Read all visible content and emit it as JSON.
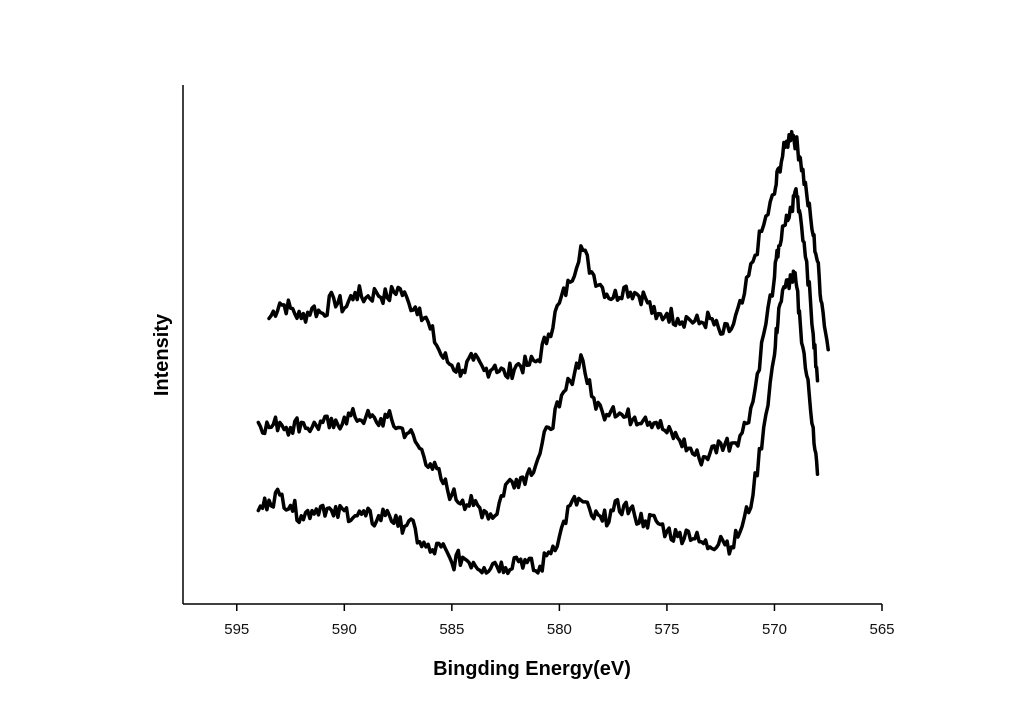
{
  "chart_data": {
    "type": "line",
    "title": "",
    "xlabel": "Bingding Energy(eV)",
    "ylabel": "Intensity",
    "xlim": [
      597.5,
      565
    ],
    "x_reversed": true,
    "ylim": [
      0,
      1
    ],
    "y_ticks_shown": false,
    "x_ticks": [
      595,
      590,
      585,
      580,
      575,
      570,
      565
    ],
    "x_tick_labels": [
      "595",
      "590",
      "585",
      "580",
      "575",
      "570",
      "565"
    ],
    "grid": false,
    "legend": "none",
    "line_color": "#000000",
    "series": [
      {
        "x": [
          593.5,
          593,
          592.5,
          592,
          591.5,
          591,
          590.5,
          590,
          589.5,
          589,
          588.5,
          588,
          587.5,
          587,
          586.5,
          586,
          585.5,
          585,
          584.5,
          584,
          583.5,
          583,
          582.5,
          582,
          581.5,
          581,
          580.5,
          580,
          579.5,
          579,
          578.5,
          578,
          577.5,
          577,
          576.5,
          576,
          575.5,
          575,
          574.5,
          574,
          573.5,
          573,
          572.5,
          572,
          571.5,
          571,
          570.5,
          570,
          569.8,
          569.5,
          569.2,
          569,
          568.8,
          568.5,
          568.2,
          568,
          567.8,
          567.5
        ],
        "y": [
          0.55,
          0.58,
          0.57,
          0.55,
          0.57,
          0.56,
          0.59,
          0.57,
          0.6,
          0.59,
          0.6,
          0.59,
          0.61,
          0.58,
          0.57,
          0.53,
          0.48,
          0.46,
          0.45,
          0.47,
          0.45,
          0.46,
          0.44,
          0.46,
          0.46,
          0.47,
          0.52,
          0.58,
          0.62,
          0.69,
          0.64,
          0.61,
          0.59,
          0.61,
          0.6,
          0.59,
          0.55,
          0.56,
          0.55,
          0.55,
          0.54,
          0.55,
          0.52,
          0.53,
          0.58,
          0.66,
          0.73,
          0.79,
          0.84,
          0.88,
          0.91,
          0.89,
          0.86,
          0.79,
          0.71,
          0.66,
          0.58,
          0.49
        ]
      },
      {
        "x": [
          594,
          593.5,
          593,
          592.5,
          592,
          591.5,
          591,
          590.5,
          590,
          589.5,
          589,
          588.5,
          588,
          587.5,
          587,
          586.5,
          586,
          585.5,
          585,
          584.5,
          584,
          583.5,
          583,
          582.5,
          582,
          581.5,
          581,
          580.5,
          580,
          579.5,
          579,
          578.5,
          578,
          577.5,
          577,
          576.5,
          576,
          575.5,
          575,
          574.5,
          574,
          573.5,
          573,
          572.5,
          572,
          571.5,
          571,
          570.5,
          570,
          569.8,
          569.5,
          569.2,
          569,
          568.8,
          568.5,
          568.2,
          568
        ],
        "y": [
          0.35,
          0.34,
          0.35,
          0.34,
          0.35,
          0.34,
          0.35,
          0.34,
          0.36,
          0.36,
          0.36,
          0.35,
          0.36,
          0.34,
          0.33,
          0.3,
          0.27,
          0.24,
          0.21,
          0.2,
          0.19,
          0.18,
          0.17,
          0.23,
          0.24,
          0.25,
          0.28,
          0.34,
          0.38,
          0.43,
          0.48,
          0.4,
          0.37,
          0.38,
          0.36,
          0.36,
          0.36,
          0.35,
          0.33,
          0.32,
          0.3,
          0.28,
          0.29,
          0.31,
          0.31,
          0.33,
          0.39,
          0.52,
          0.63,
          0.69,
          0.73,
          0.76,
          0.8,
          0.75,
          0.66,
          0.52,
          0.43
        ]
      },
      {
        "x": [
          594,
          593.5,
          593,
          592.5,
          592,
          591.5,
          591,
          590.5,
          590,
          589.5,
          589,
          588.5,
          588,
          587.5,
          587,
          586.5,
          586,
          585.5,
          585,
          584.5,
          584,
          583.5,
          583,
          582.5,
          582,
          581.5,
          581,
          580.5,
          580,
          579.5,
          579,
          578.5,
          578,
          577.5,
          577,
          576.5,
          576,
          575.5,
          575,
          574.5,
          574,
          573.5,
          573,
          572.5,
          572,
          571.5,
          571,
          570.5,
          570,
          569.8,
          569.5,
          569.2,
          569,
          568.8,
          568.5,
          568.2,
          568
        ],
        "y": [
          0.18,
          0.2,
          0.21,
          0.19,
          0.17,
          0.18,
          0.19,
          0.17,
          0.18,
          0.17,
          0.17,
          0.16,
          0.18,
          0.15,
          0.16,
          0.12,
          0.1,
          0.11,
          0.08,
          0.09,
          0.08,
          0.07,
          0.08,
          0.07,
          0.09,
          0.08,
          0.06,
          0.1,
          0.13,
          0.19,
          0.2,
          0.17,
          0.16,
          0.18,
          0.19,
          0.17,
          0.16,
          0.16,
          0.14,
          0.13,
          0.14,
          0.12,
          0.11,
          0.13,
          0.11,
          0.15,
          0.21,
          0.34,
          0.48,
          0.57,
          0.61,
          0.63,
          0.62,
          0.54,
          0.44,
          0.34,
          0.25
        ]
      }
    ]
  }
}
